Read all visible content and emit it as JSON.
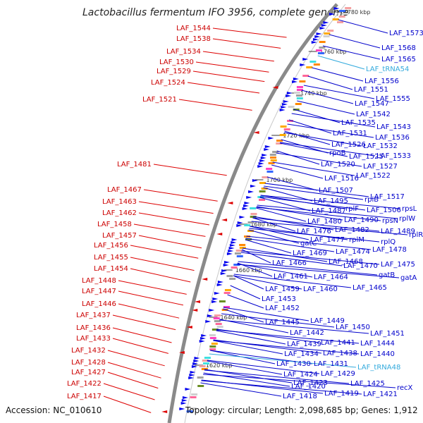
{
  "title": "Lactobacillus fermentum IFO 3956, complete genome",
  "footer": {
    "accession": "Accession: NC_010610",
    "stats": "Topology: circular; Length: 2,098,685 bp; Genes: 1,912"
  },
  "colors": {
    "left_label": "#cc0000",
    "right_label": "#0000cc",
    "trna_label": "#33aadd",
    "backbone": "#8a8a8a"
  },
  "ruler_ticks": [
    "1780 kbp",
    "1760 kbp",
    "1740 kbp",
    "1720 kbp",
    "1700 kbp",
    "1680 kbp",
    "1660 kbp",
    "1640 kbp",
    "1620 kbp"
  ],
  "left_labels": [
    "LAF_1544",
    "LAF_1538",
    "LAF_1534",
    "LAF_1530",
    "LAF_1529",
    "LAF_1524",
    "LAF_1521",
    "LAF_1481",
    "LAF_1467",
    "LAF_1463",
    "LAF_1462",
    "LAF_1458",
    "LAF_1457",
    "LAF_1456",
    "LAF_1455",
    "LAF_1454",
    "LAF_1448",
    "LAF_1447",
    "LAF_1446",
    "LAF_1437",
    "LAF_1436",
    "LAF_1433",
    "LAF_1432",
    "LAF_1428",
    "LAF_1427",
    "LAF_1422",
    "LAF_1417"
  ],
  "right_labels": [
    "LAF_1573",
    "LAF_1568",
    "LAF_1565",
    "LAF_tRNA54",
    "LAF_1556",
    "LAF_1551",
    "LAF_1555",
    "LAF_1547",
    "LAF_1542",
    "LAF_1535",
    "LAF_1543",
    "LAF_1531",
    "LAF_1536",
    "LAF_1526",
    "LAF_1532",
    "rpoB",
    "LAF_1525",
    "LAF_1533",
    "LAF_1520",
    "LAF_1527",
    "LAF_1522",
    "LAF_1516",
    "LAF_1507",
    "LAF_1517",
    "LAF_1495",
    "rplB",
    "LAF_1487",
    "rplF",
    "LAF_1506",
    "rpsL",
    "LAF_1480",
    "LAF_1490",
    "rpsN",
    "rplW",
    "LAF_1476",
    "LAF_1482",
    "LAF_1489",
    "rplR",
    "LAF_1477",
    "rplM",
    "rplQ",
    "gatC",
    "LAF_1474",
    "LAF_1478",
    "LAF_1469",
    "LAF_1468",
    "LAF_1466",
    "LAF_1470",
    "LAF_1475",
    "gatB",
    "LAF_1461",
    "LAF_1464",
    "gatA",
    "LAF_1459",
    "LAF_1460",
    "LAF_1465",
    "LAF_1453",
    "LAF_1452",
    "LAF_1445",
    "LAF_1449",
    "LAF_1450",
    "LAF_1442",
    "LAF_1451",
    "LAF_1441",
    "LAF_1439",
    "LAF_1444",
    "LAF_1434",
    "LAF_1438",
    "LAF_1440",
    "LAF_1430",
    "LAF_1431",
    "LAF_tRNA48",
    "LAF_1424",
    "LAF_1429",
    "LAF_1423",
    "LAF_1425",
    "LAF_1420",
    "recX",
    "LAF_1419",
    "LAF_1421",
    "LAF_1418"
  ]
}
